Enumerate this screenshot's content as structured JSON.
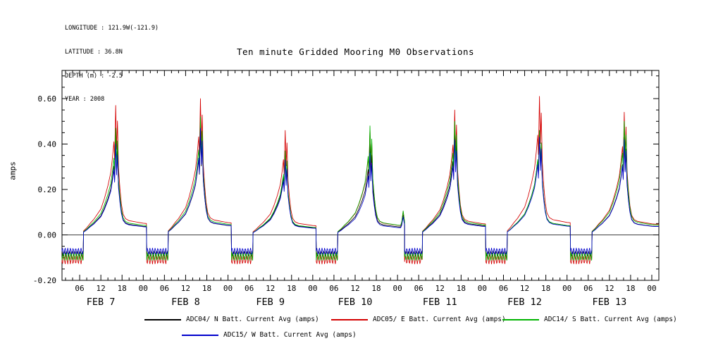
{
  "title": "Ten minute Gridded Mooring M0 Observations",
  "metadata": {
    "lines": [
      "LONGITUDE : 121.9W(-121.9)",
      "LATITUDE : 36.8N",
      "DEPTH (m) : -2.5",
      "YEAR : 2008"
    ]
  },
  "chart_data": {
    "type": "line",
    "title": "Ten minute Gridded Mooring M0 Observations",
    "ylabel": "amps",
    "ylim": [
      -0.2,
      0.6
    ],
    "yticks": [
      {
        "v": -0.2,
        "label": "-0.20"
      },
      {
        "v": 0.0,
        "label": "0.00"
      },
      {
        "v": 0.2,
        "label": "0.20"
      },
      {
        "v": 0.4,
        "label": "0.40"
      },
      {
        "v": 0.6,
        "label": "0.60"
      }
    ],
    "y_minor_step": 0.05,
    "x_range_hours": [
      1,
      170
    ],
    "x_tick_start": 6,
    "x_tick_end": 168,
    "x_major_step": 6,
    "x_minor_step": 2,
    "xtick_labels_cycle": [
      "06",
      "12",
      "18",
      "00"
    ],
    "day_labels": [
      {
        "label": "FEB 7",
        "hour": 12
      },
      {
        "label": "FEB 8",
        "hour": 36
      },
      {
        "label": "FEB 9",
        "hour": 60
      },
      {
        "label": "FEB 10",
        "hour": 84
      },
      {
        "label": "FEB 11",
        "hour": 108
      },
      {
        "label": "FEB 12",
        "hour": 132
      },
      {
        "label": "FEB 13",
        "hour": 156
      }
    ],
    "grid": false,
    "legend_position": "bottom",
    "daily_profile": [
      [
        7.1,
        0.03
      ],
      [
        8.0,
        0.055
      ],
      [
        9.0,
        0.09
      ],
      [
        10.0,
        0.12
      ],
      [
        11.0,
        0.16
      ],
      [
        12.0,
        0.2
      ],
      [
        13.0,
        0.28
      ],
      [
        14.0,
        0.38
      ],
      [
        14.8,
        0.48
      ],
      [
        15.3,
        0.6
      ],
      [
        15.7,
        0.72
      ],
      [
        15.9,
        0.58
      ],
      [
        16.2,
        1.0
      ],
      [
        16.45,
        0.66
      ],
      [
        16.7,
        0.88
      ],
      [
        17.0,
        0.52
      ],
      [
        17.4,
        0.36
      ],
      [
        17.8,
        0.24
      ],
      [
        18.3,
        0.16
      ],
      [
        19.0,
        0.125
      ],
      [
        20.0,
        0.11
      ],
      [
        21.0,
        0.105
      ],
      [
        22.0,
        0.1
      ],
      [
        23.0,
        0.095
      ],
      [
        24.0,
        0.09
      ],
      [
        24.9,
        0.088
      ]
    ],
    "midnight_bump_profile": [
      [
        25.2,
        0.12
      ],
      [
        25.6,
        0.22
      ],
      [
        26.0,
        0.12
      ]
    ],
    "days": [
      {
        "date": "FEB 7"
      },
      {
        "date": "FEB 8"
      },
      {
        "date": "FEB 9"
      },
      {
        "date": "FEB 10",
        "midnight_bump": true
      },
      {
        "date": "FEB 11",
        "plateau_start": 2
      },
      {
        "date": "FEB 12"
      },
      {
        "date": "FEB 13"
      }
    ],
    "series": [
      {
        "id": "ADC04",
        "label": "ADC04/ N Batt. Current Avg (amps)",
        "color": "#000000",
        "peaks": [
          0.42,
          0.46,
          0.35,
          0.4,
          0.45,
          0.46,
          0.43
        ],
        "night_level": -0.082,
        "night_osc_amp": 0.012,
        "phase": 0.0
      },
      {
        "id": "ADC05",
        "label": "ADC05/ E Batt. Current Avg (amps)",
        "color": "#d40000",
        "peaks": [
          0.57,
          0.6,
          0.46,
          0.47,
          0.55,
          0.61,
          0.54
        ],
        "night_level": -0.108,
        "night_osc_amp": 0.02,
        "phase": 1.6
      },
      {
        "id": "ADC14",
        "label": "ADC14/ S Batt. Current Avg (amps)",
        "color": "#00b400",
        "peaks": [
          0.47,
          0.52,
          0.37,
          0.48,
          0.5,
          0.46,
          0.5
        ],
        "night_level": -0.096,
        "night_osc_amp": 0.016,
        "phase": 3.1
      },
      {
        "id": "ADC15",
        "label": "ADC15/ W Batt. Current Avg (amps)",
        "color": "#0000cc",
        "peaks": [
          0.4,
          0.47,
          0.33,
          0.36,
          0.42,
          0.43,
          0.42
        ],
        "night_level": -0.072,
        "night_osc_amp": 0.014,
        "phase": 4.7
      }
    ]
  }
}
